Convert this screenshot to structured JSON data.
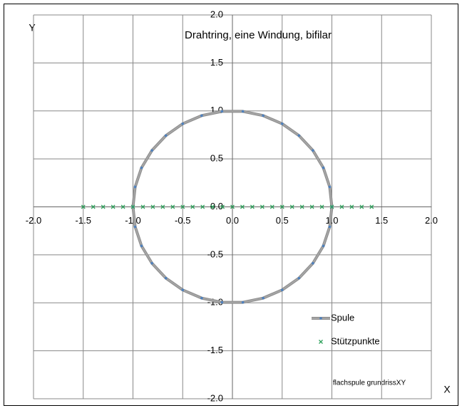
{
  "chart_data": {
    "type": "scatter",
    "title": "Drahtring, eine Windung, bifilar",
    "x_label": "X",
    "y_label": "Y",
    "annotation": "flachspule grundrissXY",
    "xlim": [
      -2,
      2
    ],
    "ylim": [
      -2,
      2
    ],
    "xticks": [
      {
        "value": -2,
        "label": "-2.0"
      },
      -1.5,
      {
        "value": -1,
        "label": "-1.0"
      },
      -0.5,
      {
        "value": 0,
        "label": "0.0"
      },
      0.5,
      {
        "value": 1,
        "label": "1.0"
      },
      1.5,
      {
        "value": 2,
        "label": "2.0"
      }
    ],
    "yticks": [
      {
        "value": -2,
        "label": "-2.0"
      },
      -1.5,
      {
        "value": -1,
        "label": "-1.0"
      },
      -0.5,
      {
        "value": 0,
        "label": "0.0"
      },
      0.5,
      {
        "value": 1,
        "label": "1.0"
      },
      1.5,
      {
        "value": 2,
        "label": "2.0"
      }
    ],
    "grid": true,
    "legend": "lower right",
    "series": [
      {
        "name": "Spule",
        "style": "line",
        "color": "#a6a6a6",
        "marker_color": "#4f81bd",
        "x": [
          1,
          0.978,
          0.914,
          0.809,
          0.669,
          0.5,
          0.309,
          0.105,
          -0.105,
          -0.309,
          -0.5,
          -0.669,
          -0.809,
          -0.914,
          -0.978,
          -1,
          -0.978,
          -0.914,
          -0.809,
          -0.669,
          -0.5,
          -0.309,
          -0.105,
          0.105,
          0.309,
          0.5,
          0.669,
          0.809,
          0.914,
          0.978,
          1
        ],
        "y": [
          0,
          0.208,
          0.407,
          0.588,
          0.743,
          0.866,
          0.951,
          0.995,
          0.995,
          0.951,
          0.866,
          0.743,
          0.588,
          0.407,
          0.208,
          0,
          -0.208,
          -0.407,
          -0.588,
          -0.743,
          -0.866,
          -0.951,
          -0.995,
          -0.995,
          -0.951,
          -0.866,
          -0.743,
          -0.588,
          -0.407,
          -0.208,
          0
        ]
      },
      {
        "name": "Stützpunkte",
        "style": "cross",
        "color": "#2ca05a",
        "x": [
          -1.5,
          -1.4,
          -1.3,
          -1.2,
          -1.1,
          -1.0,
          -0.9,
          -0.8,
          -0.7,
          -0.6,
          -0.5,
          -0.4,
          -0.3,
          -0.2,
          -0.1,
          0,
          0.1,
          0.2,
          0.3,
          0.4,
          0.5,
          0.6,
          0.7,
          0.8,
          0.9,
          1.0,
          1.1,
          1.2,
          1.3,
          1.4
        ],
        "y": [
          0,
          0,
          0,
          0,
          0,
          0,
          0,
          0,
          0,
          0,
          0,
          0,
          0,
          0,
          0,
          0,
          0,
          0,
          0,
          0,
          0,
          0,
          0,
          0,
          0,
          0,
          0,
          0,
          0,
          0
        ]
      }
    ]
  }
}
